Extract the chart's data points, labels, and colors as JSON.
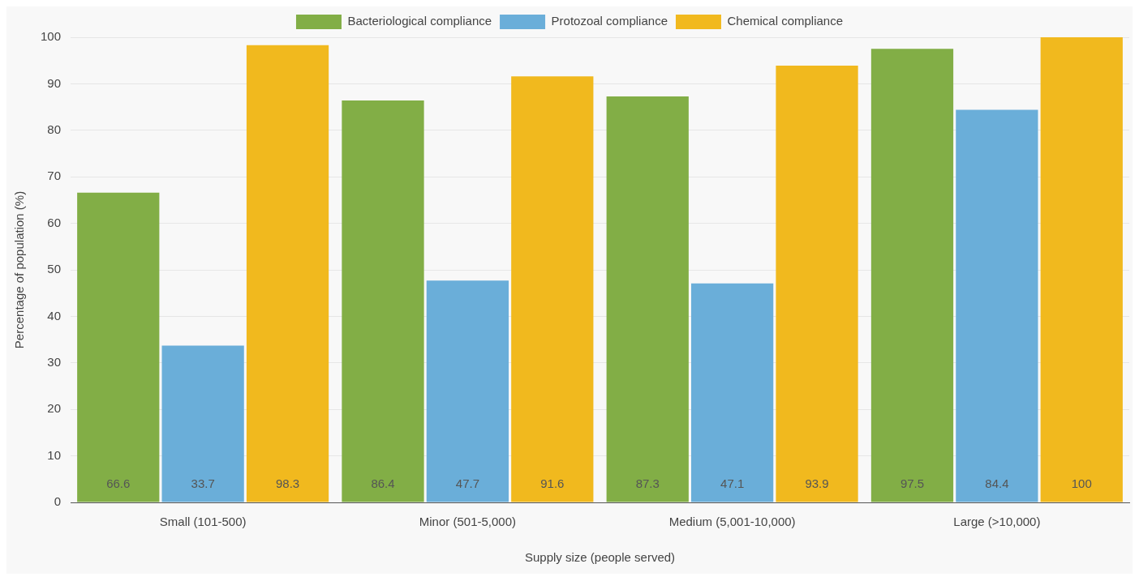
{
  "chart_data": {
    "type": "bar",
    "xlabel": "Supply size (people served)",
    "ylabel": "Percentage of population (%)",
    "categories": [
      "Small (101-500)",
      "Minor (501-5,000)",
      "Medium (5,001-10,000)",
      "Large (>10,000)"
    ],
    "series": [
      {
        "name": "Bacteriological compliance",
        "color": "#82ae46",
        "values": [
          66.6,
          86.4,
          87.3,
          97.5
        ]
      },
      {
        "name": "Protozoal compliance",
        "color": "#6aaed9",
        "values": [
          33.7,
          47.7,
          47.1,
          84.4
        ]
      },
      {
        "name": "Chemical compliance",
        "color": "#f1b91e",
        "values": [
          98.3,
          91.6,
          93.9,
          100
        ]
      }
    ],
    "ylim": [
      0,
      100
    ],
    "yticks": [
      0,
      10,
      20,
      30,
      40,
      50,
      60,
      70,
      80,
      90,
      100
    ],
    "grid": "y",
    "legend": "top",
    "data_labels": true
  }
}
